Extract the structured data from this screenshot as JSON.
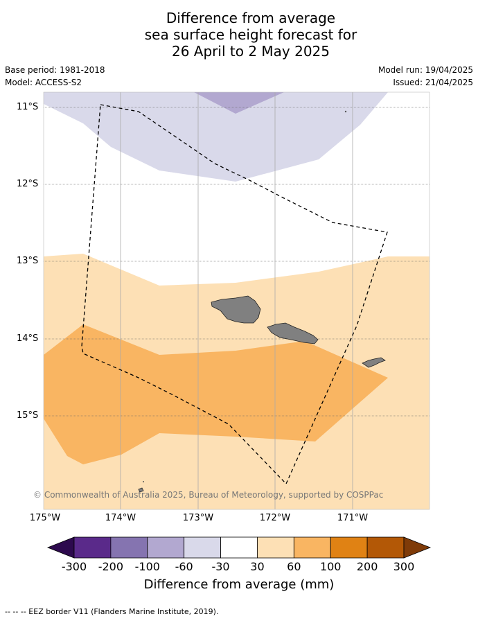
{
  "title": {
    "line1": "Difference from average",
    "line2": "sea surface height forecast for",
    "line3": "26 April to 2 May 2025"
  },
  "info": {
    "base_period": "Base period: 1981-2018",
    "model": "Model: ACCESS-S2",
    "model_run": "Model run: 19/04/2025",
    "issued": "Issued: 21/04/2025"
  },
  "map": {
    "latitude_labels": [
      "11°S",
      "12°S",
      "13°S",
      "14°S",
      "15°S"
    ],
    "longitude_labels": [
      "175°W",
      "174°W",
      "173°W",
      "172°W",
      "171°W"
    ],
    "copyright": "© Commonwealth of Australia 2025, Bureau of Meteorology, supported by COSPPac"
  },
  "colorbar": {
    "ticks": [
      "-300",
      "-200",
      "-100",
      "-60",
      "-30",
      "30",
      "60",
      "100",
      "200",
      "300"
    ],
    "colors": [
      "#2d0a4e",
      "#5a2a8a",
      "#8574b0",
      "#b2a8d0",
      "#d9d9ea",
      "#ffffff",
      "#fde0b5",
      "#f9b562",
      "#e08214",
      "#b35806",
      "#7f3b08"
    ],
    "label": "Difference from average (mm)"
  },
  "legend_note": "--  --  -- EEZ border V11 (Flanders Marine Institute, 2019)."
}
